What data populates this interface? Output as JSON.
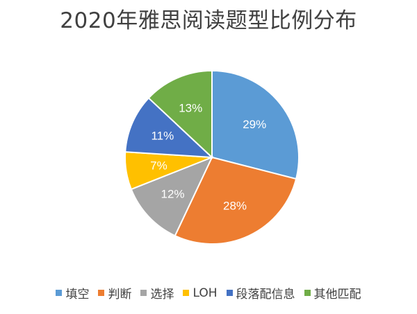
{
  "title": "2020年雅思阅读题型比例分布",
  "chart_data": {
    "type": "pie",
    "title": "2020年雅思阅读题型比例分布",
    "categories": [
      "填空",
      "判断",
      "选择",
      "LOH",
      "段落配信息",
      "其他匹配"
    ],
    "values": [
      29,
      28,
      12,
      7,
      11,
      13
    ],
    "labels": [
      "29%",
      "28%",
      "12%",
      "7%",
      "11%",
      "13%"
    ],
    "colors": [
      "#5B9BD5",
      "#ED7D31",
      "#A5A5A5",
      "#FFC000",
      "#4472C4",
      "#70AD47"
    ],
    "start_angle": "12 o'clock",
    "direction": "clockwise",
    "legend_position": "bottom"
  }
}
